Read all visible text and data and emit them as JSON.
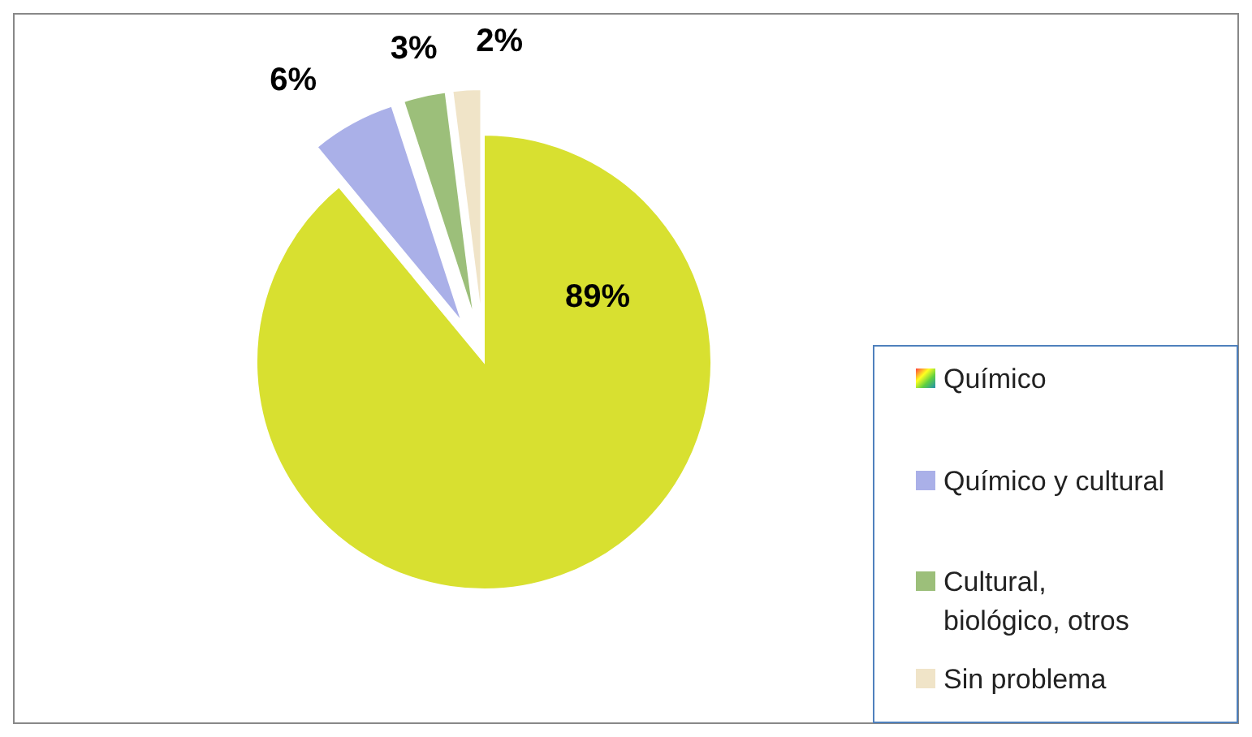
{
  "chart_data": {
    "type": "pie",
    "categories": [
      "Químico",
      "Químico y cultural",
      "Cultural, biológico, otros",
      "Sin problema"
    ],
    "values": [
      89,
      6,
      3,
      2
    ],
    "colors": [
      "#d8e030",
      "#aab0e8",
      "#9cbf7a",
      "#f0e4c8"
    ],
    "value_labels": [
      "89%",
      "6%",
      "3%",
      "2%"
    ],
    "legend": "right"
  }
}
